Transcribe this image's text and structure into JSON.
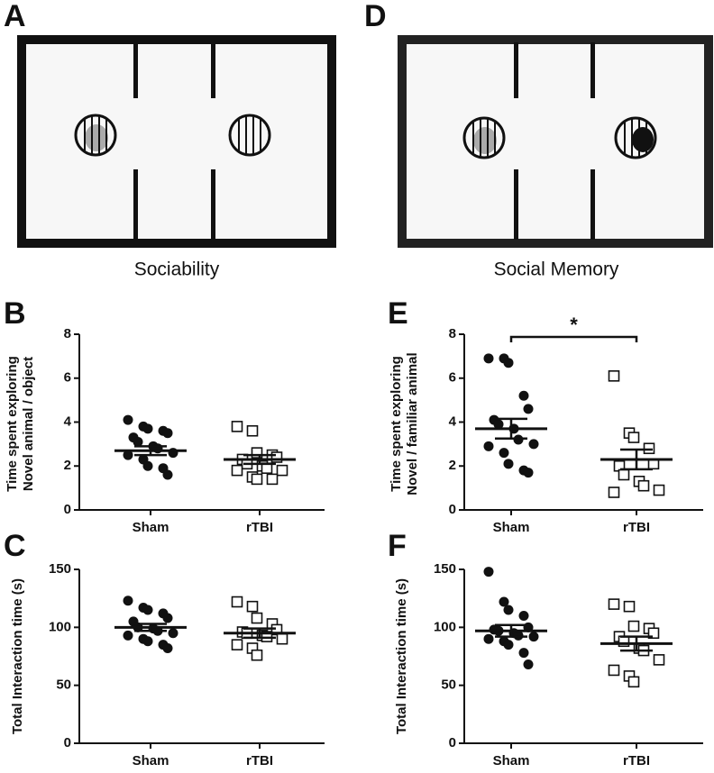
{
  "diagrams": [
    {
      "label": "A",
      "caption": "Sociability"
    },
    {
      "label": "D",
      "caption": "Social Memory"
    }
  ],
  "chart_data": [
    {
      "type": "strip",
      "label": "B",
      "ylabel": [
        "Time spent exploring",
        "Novel animal / object"
      ],
      "categories": [
        "Sham",
        "rTBI"
      ],
      "markers": [
        "filled-circle",
        "open-square"
      ],
      "values": [
        [
          4.1,
          3.8,
          3.7,
          3.6,
          3.5,
          3.3,
          3.1,
          2.9,
          2.8,
          2.6,
          2.5,
          2.3,
          2.0,
          1.9,
          1.6
        ],
        [
          3.8,
          3.6,
          2.6,
          2.5,
          2.4,
          2.3,
          2.1,
          2.0,
          1.9,
          1.8,
          1.8,
          1.5,
          1.4,
          1.4
        ]
      ],
      "mean": [
        2.7,
        2.3
      ],
      "error": [
        0.2,
        0.2
      ],
      "ylim": [
        0,
        8
      ],
      "yticks": [
        0,
        2,
        4,
        6,
        8
      ]
    },
    {
      "type": "strip",
      "label": "C",
      "ylabel": "Total Interaction time  (s)",
      "categories": [
        "Sham",
        "rTBI"
      ],
      "markers": [
        "filled-circle",
        "open-square"
      ],
      "values": [
        [
          123,
          117,
          115,
          112,
          108,
          105,
          100,
          99,
          97,
          95,
          93,
          90,
          88,
          85,
          82
        ],
        [
          122,
          118,
          108,
          103,
          98,
          96,
          95,
          93,
          92,
          90,
          85,
          82,
          76
        ]
      ],
      "mean": [
        100,
        95
      ],
      "error": [
        3,
        4
      ],
      "ylim": [
        0,
        150
      ],
      "yticks": [
        0,
        50,
        100,
        150
      ]
    },
    {
      "type": "strip",
      "label": "E",
      "ylabel": [
        "Time spent exploring",
        "Novel / familiar animal"
      ],
      "categories": [
        "Sham",
        "rTBI"
      ],
      "markers": [
        "filled-circle",
        "open-square"
      ],
      "values": [
        [
          6.9,
          6.9,
          6.7,
          5.2,
          4.6,
          4.1,
          3.9,
          3.7,
          3.2,
          3.0,
          2.9,
          2.6,
          2.1,
          1.8,
          1.7
        ],
        [
          6.1,
          3.5,
          3.3,
          2.8,
          2.1,
          2.0,
          1.6,
          1.3,
          1.1,
          0.9,
          0.8
        ]
      ],
      "mean": [
        3.7,
        2.3
      ],
      "error": [
        0.45,
        0.45
      ],
      "annotation": "*",
      "ylim": [
        0,
        8
      ],
      "yticks": [
        0,
        2,
        4,
        6,
        8
      ]
    },
    {
      "type": "strip",
      "label": "F",
      "ylabel": "Total Interaction time  (s)",
      "categories": [
        "Sham",
        "rTBI"
      ],
      "markers": [
        "filled-circle",
        "open-square"
      ],
      "values": [
        [
          148,
          122,
          115,
          110,
          100,
          98,
          97,
          95,
          93,
          92,
          90,
          88,
          85,
          78,
          68
        ],
        [
          120,
          118,
          101,
          99,
          95,
          92,
          88,
          82,
          80,
          72,
          63,
          58,
          53
        ]
      ],
      "mean": [
        97,
        86
      ],
      "error": [
        5,
        6
      ],
      "ylim": [
        0,
        150
      ],
      "yticks": [
        0,
        50,
        100,
        150
      ]
    }
  ]
}
